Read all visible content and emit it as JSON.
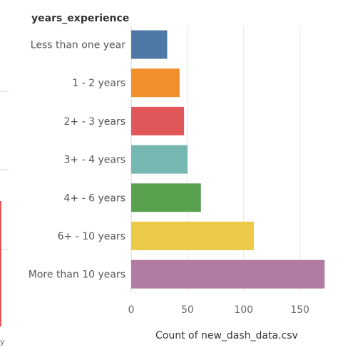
{
  "chart_data": {
    "type": "bar",
    "orientation": "horizontal",
    "category_field": "years_experience",
    "categories": [
      "Less than one year",
      "1 - 2 years",
      "2+ - 3 years",
      "3+ - 4 years",
      "4+ - 6 years",
      "6+ - 10 years",
      "More than 10 years"
    ],
    "values": [
      32,
      43,
      47,
      50,
      62,
      109,
      172
    ],
    "colors": [
      "#4e79a7",
      "#f28e2b",
      "#e15759",
      "#76b7b2",
      "#59a14f",
      "#edc948",
      "#b07aa1"
    ],
    "xlabel": "Count of new_dash_data.csv",
    "xlim": [
      0,
      175
    ],
    "xticks": [
      0,
      50,
      100,
      150
    ],
    "grid": true
  },
  "side_panel": {
    "fragment_text": "y"
  }
}
